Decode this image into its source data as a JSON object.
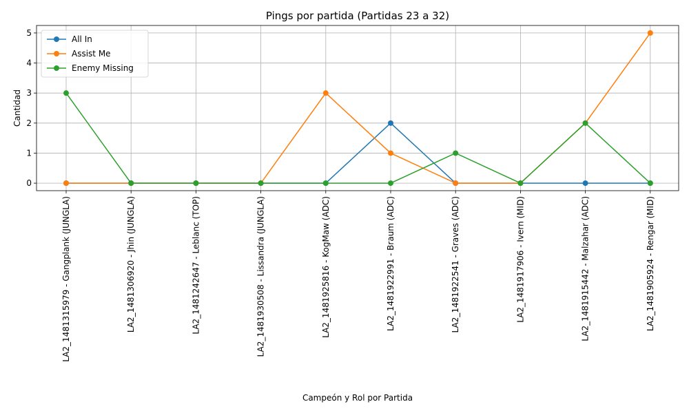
{
  "chart_data": {
    "type": "line",
    "title": "Pings por partida (Partidas 23 a 32)",
    "xlabel": "Campeón y Rol por Partida",
    "ylabel": "Cantidad",
    "categories": [
      "LA2_1481315979 - Gangplank (JUNGLA)",
      "LA2_1481306920 - Jhin (JUNGLA)",
      "LA2_1481242647 - Leblanc (TOP)",
      "LA2_1481930508 - Lissandra (JUNGLA)",
      "LA2_1481925816 - KogMaw (ADC)",
      "LA2_1481922991 - Braum (ADC)",
      "LA2_1481922541 - Graves (ADC)",
      "LA2_1481917906 - Ivern (MID)",
      "LA2_1481915442 - Malzahar (ADC)",
      "LA2_1481905924 - Rengar (MID)"
    ],
    "series": [
      {
        "name": "All In",
        "color": "#1f77b4",
        "values": [
          0,
          0,
          0,
          0,
          0,
          2,
          0,
          0,
          0,
          0
        ]
      },
      {
        "name": "Assist Me",
        "color": "#ff7f0e",
        "values": [
          0,
          0,
          0,
          0,
          3,
          1,
          0,
          0,
          2,
          5
        ]
      },
      {
        "name": "Enemy Missing",
        "color": "#2ca02c",
        "values": [
          3,
          0,
          0,
          0,
          0,
          0,
          1,
          0,
          2,
          0
        ]
      }
    ],
    "yticks": [
      0,
      1,
      2,
      3,
      4,
      5
    ],
    "ylim": [
      -0.25,
      5.25
    ],
    "grid": true,
    "legend": "top-left"
  }
}
